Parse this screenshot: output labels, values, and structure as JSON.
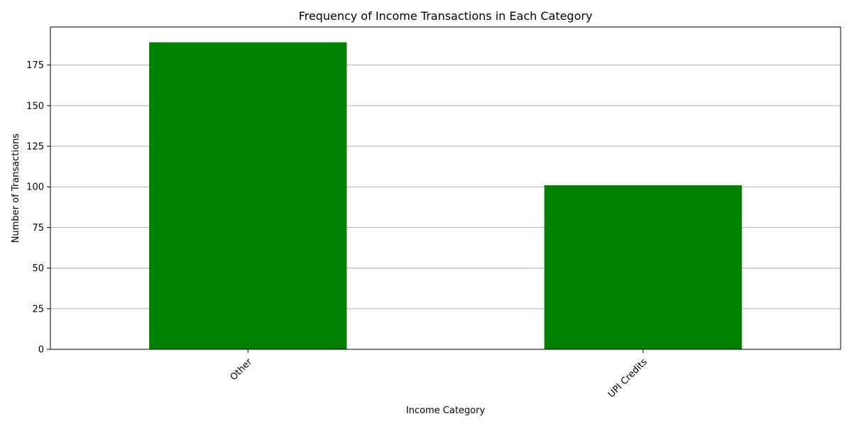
{
  "chart_data": {
    "type": "bar",
    "title": "Frequency of Income Transactions in Each Category",
    "xlabel": "Income Category",
    "ylabel": "Number of Transactions",
    "categories": [
      "Other",
      "UPI Credits"
    ],
    "values": [
      189,
      101
    ],
    "ylim": [
      0,
      198.45
    ],
    "yticks": [
      0,
      25,
      50,
      75,
      100,
      125,
      150,
      175
    ],
    "xtick_rotation_deg": 45,
    "grid": {
      "y": true,
      "x": false
    },
    "legend": "none",
    "colors": {
      "bar": "#008000",
      "grid": "#b0b0b0",
      "axis": "#000000",
      "background": "#ffffff"
    }
  }
}
